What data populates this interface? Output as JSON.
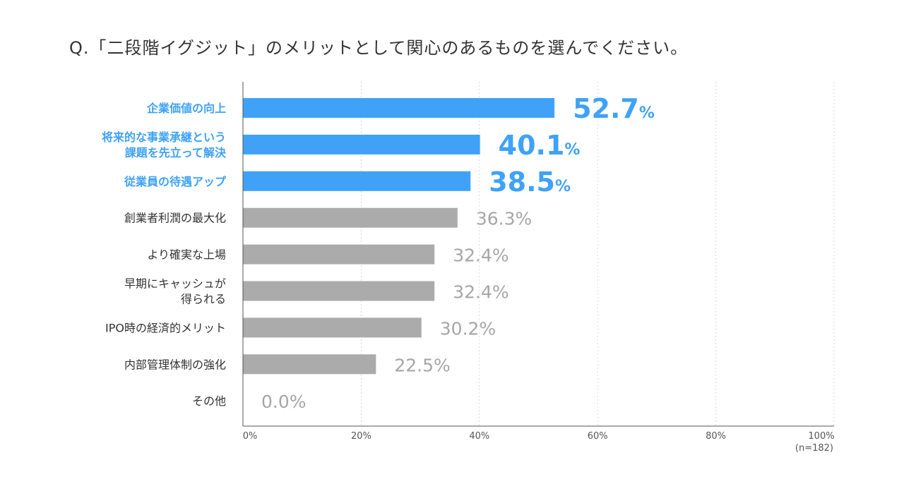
{
  "question": "Q.「二段階イグジット」のメリットとして関心のあるものを選んでください。",
  "sample_note": "(n=182)",
  "colors": {
    "highlight": "#3fa2f7",
    "normal": "#ababab",
    "label_dark": "#333333",
    "value_gray": "#a6a6a6"
  },
  "chart_data": {
    "type": "bar",
    "orientation": "horizontal",
    "title": "",
    "xlabel": "",
    "ylabel": "",
    "xlim": [
      0,
      100
    ],
    "x_ticks": [
      "0%",
      "20%",
      "40%",
      "60%",
      "80%",
      "100%"
    ],
    "grid": "vertical dotted",
    "categories": [
      "企業価値の向上",
      "将来的な事業承継という\n課題を先立って解決",
      "従業員の待遇アップ",
      "創業者利潤の最大化",
      "より確実な上場",
      "早期にキャッシュが\n得られる",
      "IPO時の経済的メリット",
      "内部管理体制の強化",
      "その他"
    ],
    "values": [
      52.7,
      40.1,
      38.5,
      36.3,
      32.4,
      32.4,
      30.2,
      22.5,
      0.0
    ],
    "value_labels": [
      "52.7",
      "40.1",
      "38.5",
      "36.3%",
      "32.4%",
      "32.4%",
      "30.2%",
      "22.5%",
      "0.0%"
    ],
    "highlighted": [
      true,
      true,
      true,
      false,
      false,
      false,
      false,
      false,
      false
    ],
    "percent_suffix": "%"
  }
}
